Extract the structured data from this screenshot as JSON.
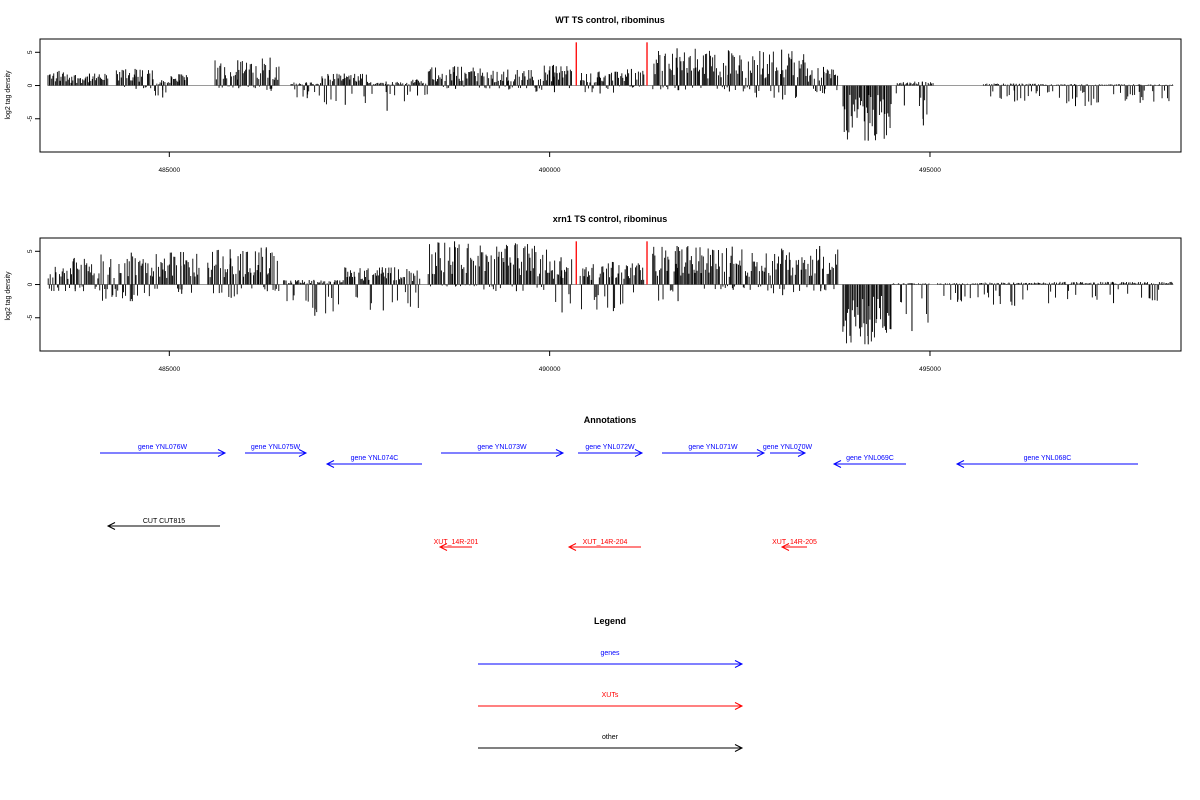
{
  "chart_data": [
    {
      "type": "bar",
      "title": "WT TS control, ribominus",
      "ylabel": "log2 tag density",
      "xlim": [
        483300,
        498300
      ],
      "ylim": [
        -10,
        7
      ],
      "x_ticks": [
        485000,
        490000,
        495000
      ],
      "y_ticks": [
        -5,
        0,
        5
      ],
      "baseline_segment": [
        483400,
        498200
      ],
      "bar_color": "#000000",
      "bars": [
        {
          "x0": 483400,
          "x1": 483700,
          "hi": 2.2,
          "lo": 0
        },
        {
          "x0": 483700,
          "x1": 484200,
          "hi": 1.8,
          "lo": 0
        },
        {
          "x0": 484300,
          "x1": 484800,
          "hi": 2.5,
          "lo": -0.5
        },
        {
          "x0": 484800,
          "x1": 485000,
          "hi": 0.8,
          "lo": -1.8
        },
        {
          "x0": 485000,
          "x1": 485250,
          "hi": 1.7,
          "lo": 0
        },
        {
          "x0": 485600,
          "x1": 486200,
          "hi": 3.8,
          "lo": -0.4
        },
        {
          "x0": 486200,
          "x1": 486450,
          "hi": 4.2,
          "lo": -0.8
        },
        {
          "x0": 486600,
          "x1": 487000,
          "hi": 0.5,
          "lo": -1.9
        },
        {
          "x0": 487000,
          "x1": 487600,
          "hi": 1.8,
          "lo": -2.9
        },
        {
          "x0": 487600,
          "x1": 488100,
          "hi": 0.6,
          "lo": -3.8
        },
        {
          "x0": 488100,
          "x1": 488400,
          "hi": 0.9,
          "lo": -1.5
        },
        {
          "x0": 488400,
          "x1": 489100,
          "hi": 2.9,
          "lo": -0.5
        },
        {
          "x0": 489100,
          "x1": 489800,
          "hi": 2.4,
          "lo": -0.6
        },
        {
          "x0": 489800,
          "x1": 490300,
          "hi": 3.1,
          "lo": -1.0
        },
        {
          "x0": 490400,
          "x1": 490900,
          "hi": 2.1,
          "lo": -1.2
        },
        {
          "x0": 490900,
          "x1": 491250,
          "hi": 2.5,
          "lo": -0.3
        },
        {
          "x0": 491350,
          "x1": 492000,
          "hi": 5.6,
          "lo": -0.7
        },
        {
          "x0": 492000,
          "x1": 492700,
          "hi": 5.3,
          "lo": -0.9
        },
        {
          "x0": 492700,
          "x1": 493400,
          "hi": 5.4,
          "lo": -2.1
        },
        {
          "x0": 493400,
          "x1": 493800,
          "hi": 2.8,
          "lo": -1.2
        },
        {
          "x0": 493850,
          "x1": 494500,
          "hi": 0,
          "lo": -8.3
        },
        {
          "x0": 494550,
          "x1": 494750,
          "hi": 0.5,
          "lo": -3.0
        },
        {
          "x0": 494750,
          "x1": 495050,
          "hi": 0.6,
          "lo": -6.0
        },
        {
          "x0": 495700,
          "x1": 496500,
          "hi": 0.3,
          "lo": -2.4
        },
        {
          "x0": 496500,
          "x1": 497300,
          "hi": 0.2,
          "lo": -3.1
        },
        {
          "x0": 497300,
          "x1": 498200,
          "hi": 0.2,
          "lo": -2.6
        }
      ],
      "red_markers": [
        {
          "x": 490350,
          "y": 6.5
        },
        {
          "x": 491280,
          "y": 6.5
        }
      ]
    },
    {
      "type": "bar",
      "title": "xrn1 TS control, ribominus",
      "ylabel": "log2 tag density",
      "xlim": [
        483300,
        498300
      ],
      "ylim": [
        -10,
        7
      ],
      "x_ticks": [
        485000,
        490000,
        495000
      ],
      "y_ticks": [
        -5,
        0,
        5
      ],
      "baseline_segment": [
        483400,
        498200
      ],
      "bar_color": "#000000",
      "bars": [
        {
          "x0": 483400,
          "x1": 484100,
          "hi": 4.0,
          "lo": -1.0
        },
        {
          "x0": 484100,
          "x1": 484900,
          "hi": 4.8,
          "lo": -2.5
        },
        {
          "x0": 484900,
          "x1": 485400,
          "hi": 4.9,
          "lo": -1.4
        },
        {
          "x0": 485500,
          "x1": 486100,
          "hi": 5.3,
          "lo": -2.0
        },
        {
          "x0": 486100,
          "x1": 486450,
          "hi": 5.6,
          "lo": -1.0
        },
        {
          "x0": 486500,
          "x1": 487300,
          "hi": 0.7,
          "lo": -4.7
        },
        {
          "x0": 487300,
          "x1": 488300,
          "hi": 2.6,
          "lo": -3.9
        },
        {
          "x0": 488400,
          "x1": 489100,
          "hi": 6.5,
          "lo": -0.3
        },
        {
          "x0": 489100,
          "x1": 490000,
          "hi": 6.2,
          "lo": -1.0
        },
        {
          "x0": 490000,
          "x1": 490300,
          "hi": 4.1,
          "lo": -4.2
        },
        {
          "x0": 490400,
          "x1": 491250,
          "hi": 3.4,
          "lo": -4.0
        },
        {
          "x0": 491350,
          "x1": 492000,
          "hi": 5.8,
          "lo": -2.5
        },
        {
          "x0": 492000,
          "x1": 492800,
          "hi": 5.7,
          "lo": -0.8
        },
        {
          "x0": 492800,
          "x1": 493300,
          "hi": 5.4,
          "lo": -1.6
        },
        {
          "x0": 493300,
          "x1": 493800,
          "hi": 5.8,
          "lo": -1.0
        },
        {
          "x0": 493850,
          "x1": 494500,
          "hi": 0,
          "lo": -9.0
        },
        {
          "x0": 494500,
          "x1": 495000,
          "hi": 0.2,
          "lo": -7.0
        },
        {
          "x0": 495100,
          "x1": 495600,
          "hi": 0.2,
          "lo": -2.6
        },
        {
          "x0": 495600,
          "x1": 496600,
          "hi": 0.3,
          "lo": -3.2
        },
        {
          "x0": 496600,
          "x1": 498200,
          "hi": 0.4,
          "lo": -2.8
        }
      ],
      "red_markers": [
        {
          "x": 490350,
          "y": 6.5
        },
        {
          "x": 491280,
          "y": 6.5
        }
      ]
    }
  ],
  "annotations": {
    "title": "Annotations",
    "genes": [
      {
        "label": "gene YNL076W",
        "x0": 100,
        "x1": 225,
        "row": 0,
        "dir": "right"
      },
      {
        "label": "gene YNL075W",
        "x0": 245,
        "x1": 306,
        "row": 0,
        "dir": "right"
      },
      {
        "label": "gene YNL074C",
        "x0": 327,
        "x1": 422,
        "row": 1,
        "dir": "left"
      },
      {
        "label": "gene YNL073W",
        "x0": 441,
        "x1": 563,
        "row": 0,
        "dir": "right"
      },
      {
        "label": "gene YNL072W",
        "x0": 578,
        "x1": 642,
        "row": 0,
        "dir": "right"
      },
      {
        "label": "gene YNL071W",
        "x0": 662,
        "x1": 764,
        "row": 0,
        "dir": "right"
      },
      {
        "label": "gene YNL070W",
        "x0": 770,
        "x1": 805,
        "row": 0,
        "dir": "right"
      },
      {
        "label": "gene YNL069C",
        "x0": 834,
        "x1": 906,
        "row": 1,
        "dir": "left"
      },
      {
        "label": "gene YNL068C",
        "x0": 957,
        "x1": 1138,
        "row": 1,
        "dir": "left"
      }
    ],
    "other": [
      {
        "label": "CUT CUT815",
        "x0": 108,
        "x1": 220,
        "dir": "left"
      }
    ],
    "xuts": [
      {
        "label": "XUT_14R-201",
        "x0": 440,
        "x1": 472,
        "dir": "left"
      },
      {
        "label": "XUT_14R-204",
        "x0": 569,
        "x1": 641,
        "dir": "left"
      },
      {
        "label": "XUT_14R-205",
        "x0": 782,
        "x1": 807,
        "dir": "left"
      }
    ]
  },
  "legend": {
    "title": "Legend",
    "items": [
      {
        "label": "genes",
        "color": "#0000ff"
      },
      {
        "label": "XUTs",
        "color": "#ff0000"
      },
      {
        "label": "other",
        "color": "#000000"
      }
    ]
  },
  "colors": {
    "gene": "#0000ff",
    "xut": "#ff0000",
    "other": "#000000",
    "marker": "#ff0000",
    "baseline": "#9a9a9a"
  }
}
